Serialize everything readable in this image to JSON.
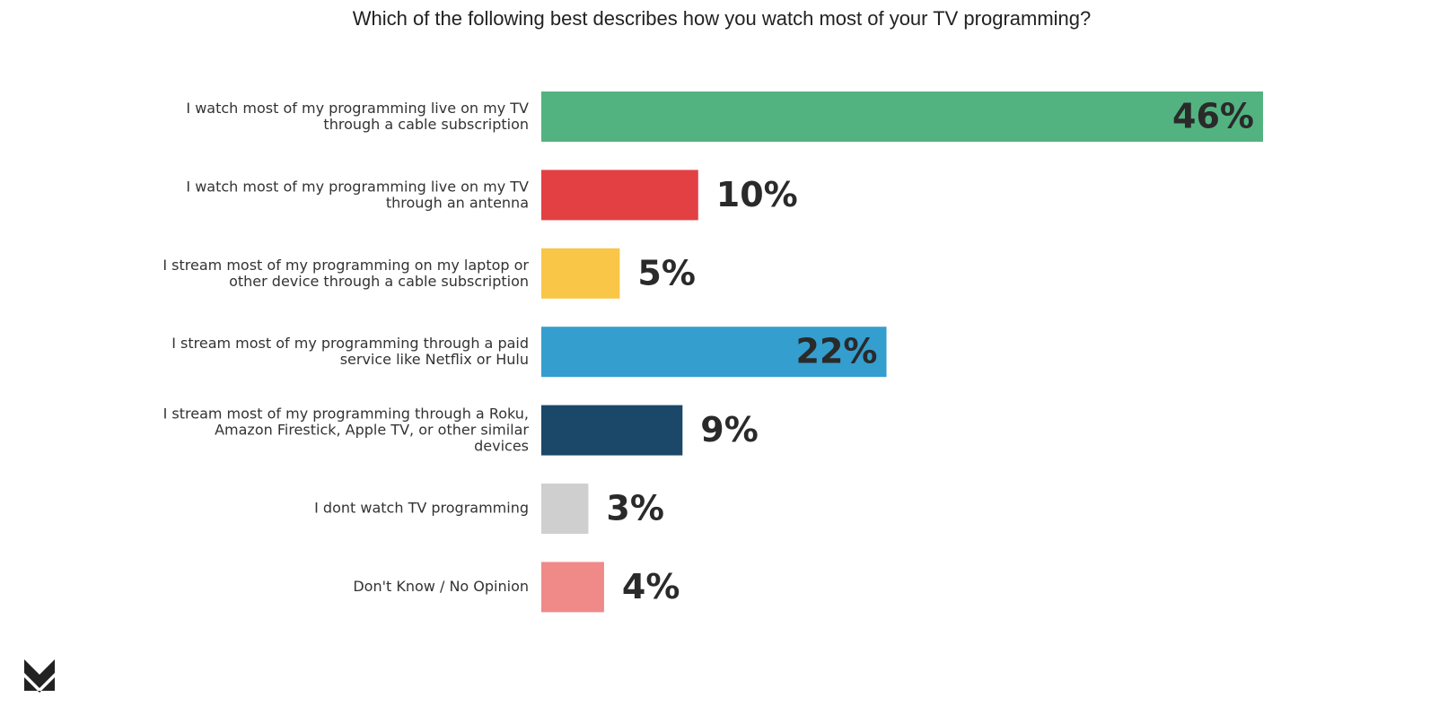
{
  "chart_data": {
    "type": "barh",
    "title": "Which of the following best describes how you watch most of your TV programming?",
    "categories": [
      "I watch most of my programming live on my TV\nthrough a cable subscription",
      "I watch most of my programming live on my TV\nthrough an antenna",
      "I stream most of my programming on my laptop or\nother device through a cable subscription",
      "I stream most of my programming through a paid\nservice like Netflix or Hulu",
      "I stream most of my programming through a Roku,\nAmazon Firestick, Apple TV, or other similar\ndevices",
      "I dont watch TV programming",
      "Don't Know / No Opinion"
    ],
    "values": [
      46,
      10,
      5,
      22,
      9,
      3,
      4
    ],
    "value_labels": [
      "46%",
      "10%",
      "5%",
      "22%",
      "9%",
      "3%",
      "4%"
    ],
    "colors": [
      "#52b380",
      "#e24043",
      "#f9c647",
      "#349ecf",
      "#1b4868",
      "#cfcfcf",
      "#ef8a89"
    ],
    "xlim": [
      0,
      46
    ]
  }
}
